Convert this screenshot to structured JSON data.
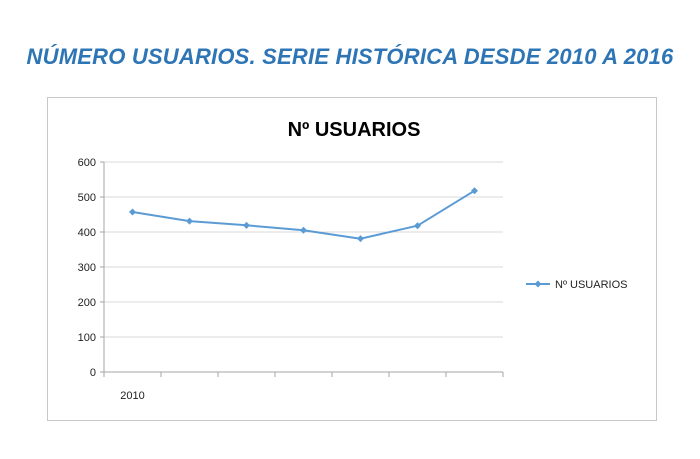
{
  "page": {
    "heading": "NÚMERO USUARIOS. SERIE HISTÓRICA DESDE 2010 A 2016",
    "heading_color": "#2e75b6"
  },
  "chart_data": {
    "type": "line",
    "title": "Nº USUARIOS",
    "categories": [
      "2010",
      "",
      "",
      "",
      "",
      "",
      ""
    ],
    "series": [
      {
        "name": "Nº USUARIOS",
        "color": "#5b9bd5",
        "marker": "diamond",
        "values": [
          457,
          431,
          419,
          405,
          381,
          418,
          518
        ]
      }
    ],
    "ylim": [
      0,
      600
    ],
    "yticks": [
      0,
      100,
      200,
      300,
      400,
      500,
      600
    ],
    "ytick_labels": [
      "0",
      "100",
      "200",
      "300",
      "400",
      "500",
      "600"
    ],
    "grid": "horizontal",
    "legend_position": "right"
  }
}
